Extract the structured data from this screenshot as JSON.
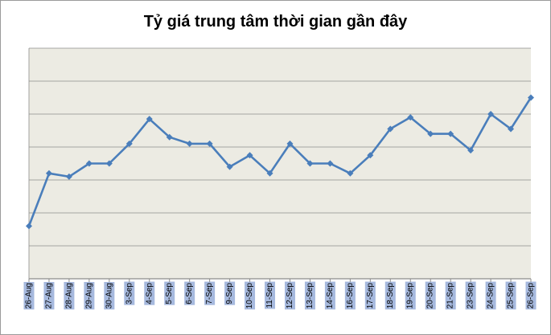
{
  "chart_data": {
    "type": "line",
    "title": "Tỷ giá trung tâm thời gian gần đây",
    "xlabel": "",
    "ylabel": "",
    "categories": [
      "26-Aug",
      "27-Aug",
      "28-Aug",
      "29-Aug",
      "30-Aug",
      "3-Sep",
      "4-Sep",
      "5-Sep",
      "6-Sep",
      "7-Sep",
      "9-Sep",
      "10-Sep",
      "11-Sep",
      "12-Sep",
      "13-Sep",
      "14-Sep",
      "16-Sep",
      "17-Sep",
      "18-Sep",
      "19-Sep",
      "20-Sep",
      "21-Sep",
      "23-Sep",
      "24-Sep",
      "25-Sep",
      "26-Sep"
    ],
    "series": [
      {
        "values": [
          1.6,
          3.2,
          3.1,
          3.5,
          3.5,
          4.1,
          4.85,
          4.3,
          4.1,
          4.1,
          3.4,
          3.75,
          3.2,
          4.1,
          3.5,
          3.5,
          3.2,
          3.75,
          4.55,
          4.9,
          4.4,
          4.4,
          3.9,
          5.0,
          4.55,
          5.5
        ]
      }
    ],
    "ylim": [
      0,
      7
    ],
    "y_gridlines": 7,
    "grid": true,
    "legend": "none",
    "colors": {
      "plot_background": "#ecebe3",
      "line": "#4a7ebb",
      "gridline": "#8c8c8c",
      "tick_label_background": "#a6b9de"
    }
  }
}
